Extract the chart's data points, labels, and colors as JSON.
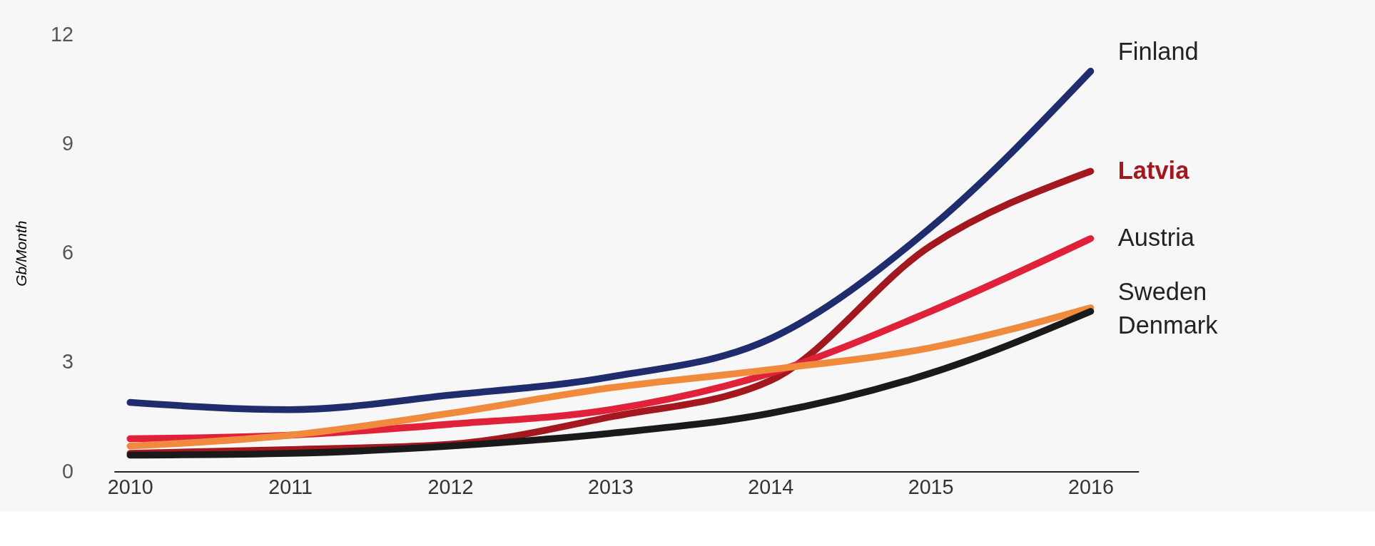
{
  "chart_data": {
    "type": "line",
    "ylabel": "Gb/Month",
    "x": [
      2010,
      2011,
      2012,
      2013,
      2014,
      2015,
      2016
    ],
    "xlim": [
      2009.9,
      2016.3
    ],
    "xticks": [
      2010,
      2011,
      2012,
      2013,
      2014,
      2015,
      2016
    ],
    "ylim": [
      0,
      12
    ],
    "yticks": [
      0,
      3,
      6,
      9,
      12
    ],
    "grid": false,
    "line_style": "solid",
    "series": [
      {
        "name": "Finland",
        "color": "#1f2d6e",
        "values": [
          1.9,
          1.7,
          2.1,
          2.6,
          3.65,
          6.7,
          11.0
        ]
      },
      {
        "name": "Latvia",
        "color": "#a3171f",
        "values": [
          0.5,
          0.6,
          0.75,
          1.5,
          2.5,
          6.2,
          8.25
        ]
      },
      {
        "name": "Austria",
        "color": "#e0213a",
        "values": [
          0.9,
          1.0,
          1.3,
          1.7,
          2.7,
          4.4,
          6.4
        ]
      },
      {
        "name": "Sweden",
        "color": "#f08a3c",
        "values": [
          0.7,
          1.0,
          1.6,
          2.3,
          2.8,
          3.4,
          4.5
        ]
      },
      {
        "name": "Denmark",
        "color": "#1a1a1a",
        "values": [
          0.45,
          0.5,
          0.7,
          1.05,
          1.6,
          2.7,
          4.4
        ]
      }
    ]
  }
}
